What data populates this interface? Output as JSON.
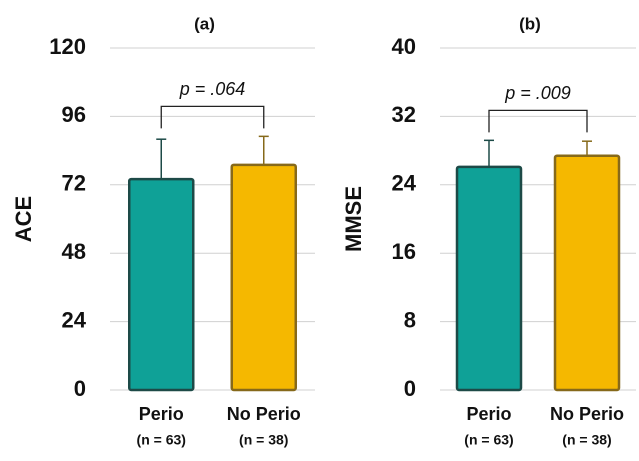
{
  "chart_data": [
    {
      "type": "bar",
      "title": "(a)",
      "ylabel": "ACE",
      "categories": [
        "Perio",
        "No Perio"
      ],
      "category_notes": [
        "(n = 63)",
        "(n = 38)"
      ],
      "values": [
        74,
        79
      ],
      "errors": [
        14,
        10
      ],
      "colors": [
        "#0fa197",
        "#f5b800"
      ],
      "edge_colors": [
        "#1d4a47",
        "#86691a"
      ],
      "ylim": [
        0,
        120
      ],
      "yticks": [
        0,
        24,
        48,
        72,
        96,
        120
      ],
      "grid": true,
      "annotation": "p = .064"
    },
    {
      "type": "bar",
      "title": "(b)",
      "ylabel": "MMSE",
      "categories": [
        "Perio",
        "No Perio"
      ],
      "category_notes": [
        "(n = 63)",
        "(n = 38)"
      ],
      "values": [
        26.1,
        27.4
      ],
      "errors": [
        3.1,
        1.7
      ],
      "colors": [
        "#0fa197",
        "#f5b800"
      ],
      "edge_colors": [
        "#1d4a47",
        "#86691a"
      ],
      "ylim": [
        0,
        40
      ],
      "yticks": [
        0,
        8,
        16,
        24,
        32,
        40
      ],
      "grid": true,
      "annotation": "p = .009"
    }
  ]
}
